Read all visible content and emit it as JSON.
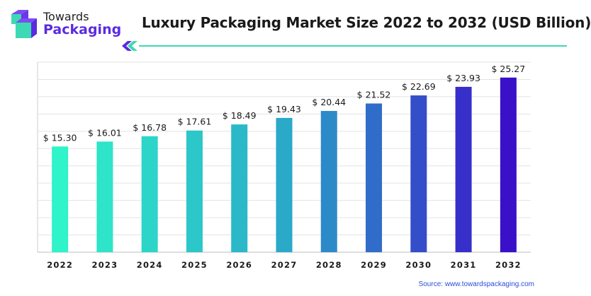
{
  "header": {
    "logo_line1": "Towards",
    "logo_line2": "Packaging",
    "title": "Luxury Packaging Market Size 2022 to 2032 (USD Billion)"
  },
  "source": "Source: www.towardspackaging.com",
  "colors": {
    "brand_purple": "#5b2be0",
    "accent_teal": "#3dd9b4",
    "bar_start": "#2ff3c9",
    "bar_end": "#3a10c9"
  },
  "chart_data": {
    "type": "bar",
    "categories": [
      "2022",
      "2023",
      "2024",
      "2025",
      "2026",
      "2027",
      "2028",
      "2029",
      "2030",
      "2031",
      "2032"
    ],
    "values": [
      15.3,
      16.01,
      16.78,
      17.61,
      18.49,
      19.43,
      20.44,
      21.52,
      22.69,
      23.93,
      25.27
    ],
    "value_labels": [
      "$ 15.30",
      "$ 16.01",
      "$ 16.78",
      "$ 17.61",
      "$ 18.49",
      "$ 19.43",
      "$ 20.44",
      "$ 21.52",
      "$ 22.69",
      "$ 23.93",
      "$ 25.27"
    ],
    "title": "Luxury Packaging Market Size 2022 to 2032 (USD Billion)",
    "xlabel": "",
    "ylabel": "",
    "ylim": [
      0,
      27.5
    ],
    "grid": true,
    "y_tick_labels_shown": false
  }
}
